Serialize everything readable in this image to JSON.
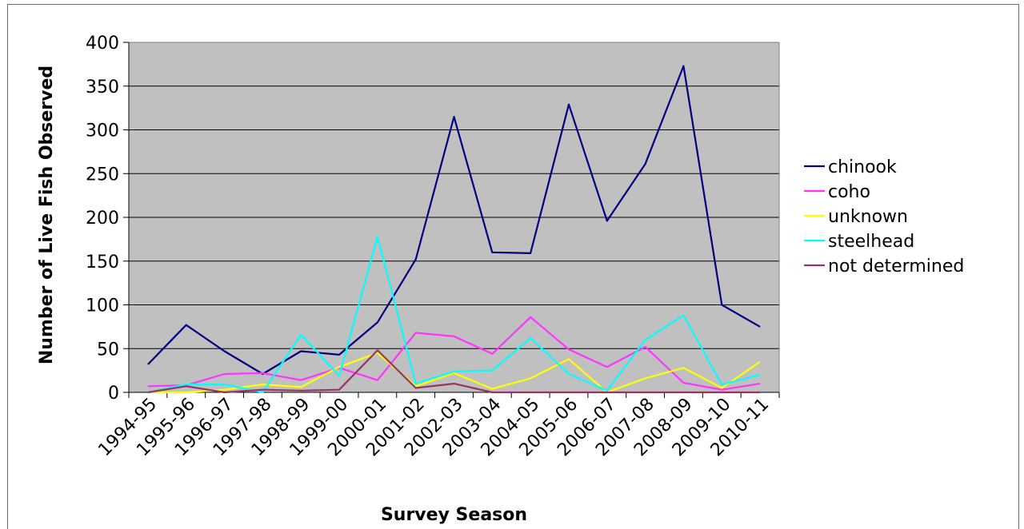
{
  "chart_data": {
    "type": "line",
    "title": "",
    "xlabel": "Survey Season",
    "ylabel": "Number of Live Fish Observed",
    "ylim": [
      0,
      400
    ],
    "yticks": [
      "0",
      "50",
      "100",
      "150",
      "200",
      "250",
      "300",
      "350",
      "400"
    ],
    "categories": [
      "1994-95",
      "1995-96",
      "1996-97",
      "1997-98",
      "1998-99",
      "1999-00",
      "2000-01",
      "2001-02",
      "2002-03",
      "2003-04",
      "2004-05",
      "2005-06",
      "2006-07",
      "2007-08",
      "2008-09",
      "2009-10",
      "2010-11"
    ],
    "grid": true,
    "legend_position": "right",
    "plot_background": "#c0c0c0",
    "series": [
      {
        "name": "chinook",
        "color": "#000080",
        "values": [
          32,
          77,
          47,
          21,
          47,
          43,
          80,
          152,
          315,
          160,
          159,
          329,
          196,
          261,
          373,
          100,
          75
        ]
      },
      {
        "name": "coho",
        "color": "#ff33ff",
        "values": [
          7,
          8,
          21,
          22,
          14,
          28,
          14,
          68,
          64,
          44,
          86,
          49,
          29,
          52,
          11,
          3,
          10
        ]
      },
      {
        "name": "unknown",
        "color": "#ffff00",
        "values": [
          0,
          0,
          3,
          9,
          6,
          29,
          45,
          7,
          22,
          4,
          16,
          38,
          0,
          16,
          28,
          5,
          35
        ]
      },
      {
        "name": "steelhead",
        "color": "#00ffff",
        "values": [
          0,
          9,
          9,
          0,
          66,
          19,
          178,
          10,
          24,
          25,
          62,
          21,
          2,
          60,
          88,
          9,
          20
        ]
      },
      {
        "name": "not determined",
        "color": "#993366",
        "values": [
          0,
          7,
          0,
          3,
          2,
          3,
          48,
          5,
          10,
          0,
          0,
          0,
          0,
          0,
          0,
          0,
          0
        ]
      }
    ]
  }
}
